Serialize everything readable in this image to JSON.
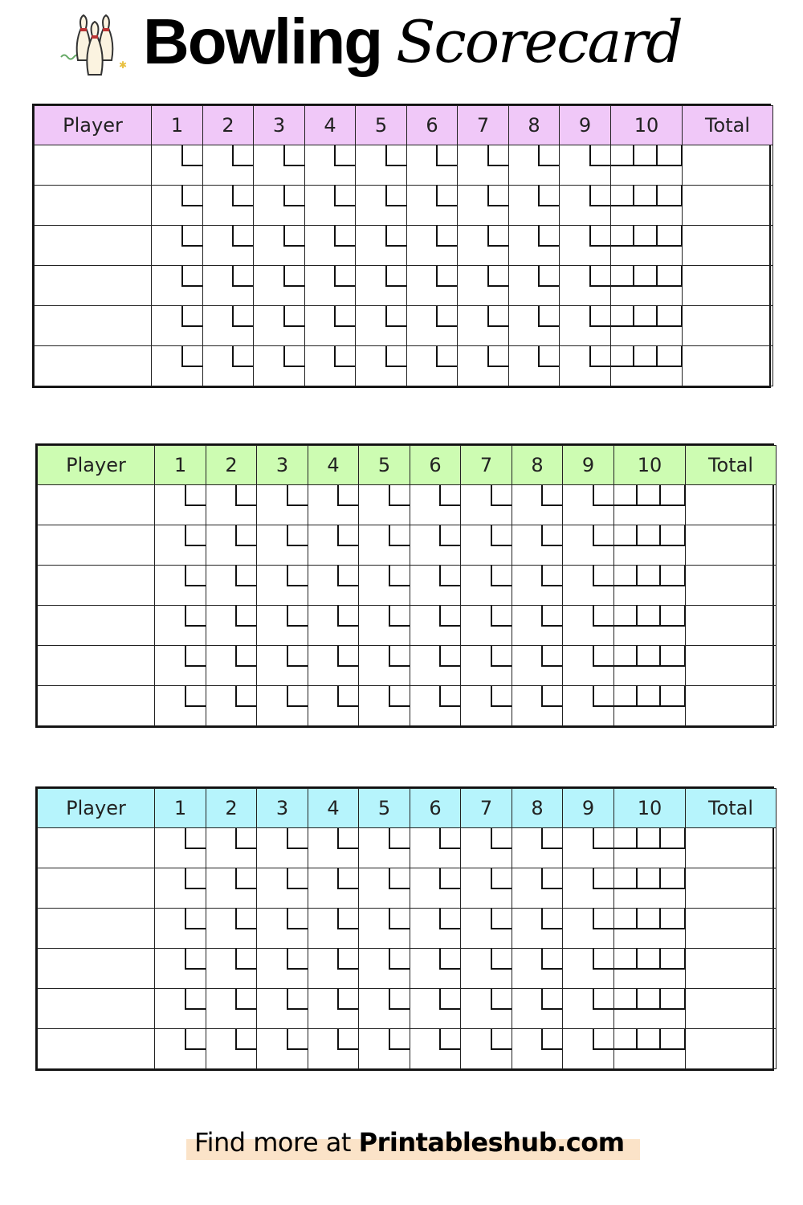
{
  "title": {
    "word1": "Bowling",
    "word2": "Scorecard",
    "logo": "bowling-pins-icon"
  },
  "columns": {
    "player": "Player",
    "frames": [
      "1",
      "2",
      "3",
      "4",
      "5",
      "6",
      "7",
      "8",
      "9",
      "10"
    ],
    "total": "Total"
  },
  "cards": [
    {
      "header_color": "#f0c8f8",
      "rows": 6
    },
    {
      "header_color": "#cdfcb2",
      "rows": 6
    },
    {
      "header_color": "#b6f4fc",
      "rows": 6
    }
  ],
  "footer": {
    "prefix": "Find more at",
    "site": "Printableshub.com",
    "highlight_color": "#fbe3c8"
  }
}
